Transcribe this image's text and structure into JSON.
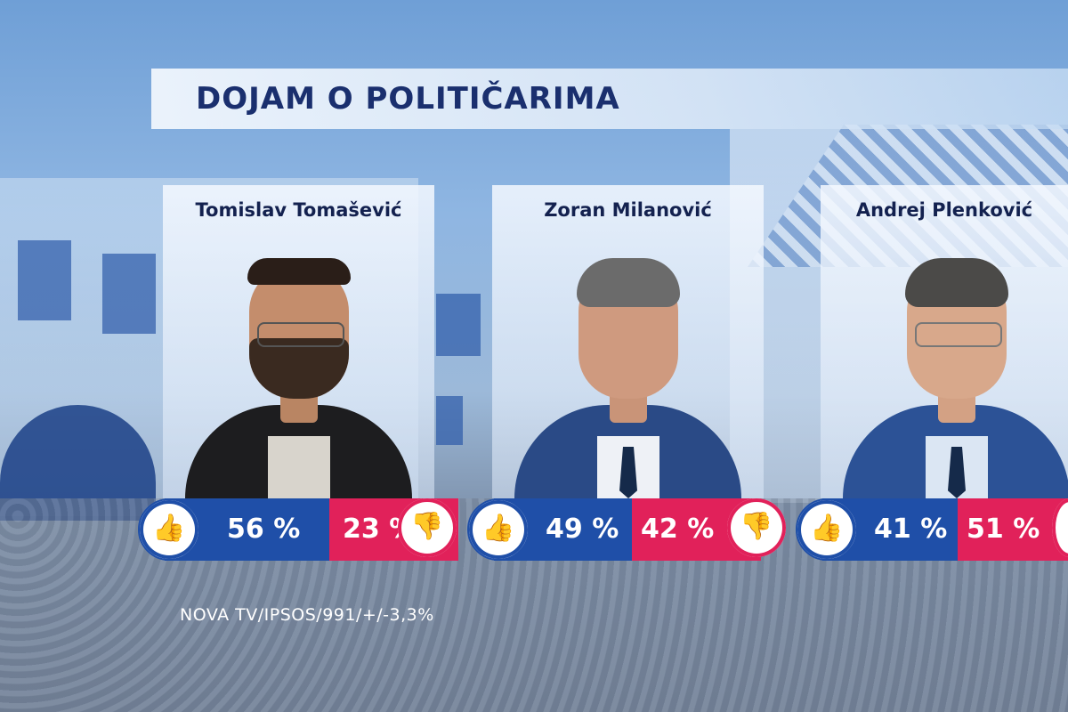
{
  "title": "DOJAM O POLITIČARIMA",
  "source": "NOVA TV/IPSOS/991/+/-3,3%",
  "colors": {
    "like": "#1f4fa8",
    "dislike": "#e1215a",
    "title_text": "#1a2f6e"
  },
  "icons": {
    "like": "thumbs-up-icon",
    "dislike": "thumbs-down-icon"
  },
  "politicians": [
    {
      "name": "Tomislav Tomašević",
      "like": "56 %",
      "dislike": "23 %"
    },
    {
      "name": "Zoran Milanović",
      "like": "49 %",
      "dislike": "42 %"
    },
    {
      "name": "Andrej Plenković",
      "like": "41 %",
      "dislike": "51 %"
    }
  ]
}
